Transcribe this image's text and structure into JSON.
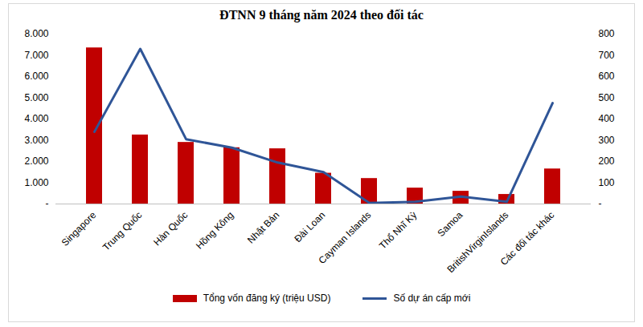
{
  "chart_data": {
    "type": "bar",
    "title": "ĐTNN 9 tháng năm 2024 theo đối tác",
    "categories": [
      "Singapore",
      "Trung Quốc",
      "Hàn Quốc",
      "Hồng Kông",
      "Nhật Bản",
      "Đài Loan",
      "Cayman Islands",
      "Thổ Nhĩ Kỳ",
      "Samoa",
      "BritishVirginIslands",
      "Các đối tác khác"
    ],
    "series": [
      {
        "name": "Tổng vốn đăng ký (triệu USD)",
        "type": "bar",
        "color": "#c00000",
        "values": [
          7350,
          3250,
          2900,
          2650,
          2600,
          1450,
          1200,
          750,
          600,
          450,
          1650
        ]
      },
      {
        "name": "Số dự án cấp mới",
        "type": "line",
        "color": "#2f5597",
        "axis": "y2",
        "values": [
          340,
          730,
          305,
          265,
          195,
          150,
          5,
          10,
          35,
          10,
          475
        ]
      }
    ],
    "ylim": [
      0,
      8000
    ],
    "yticks": [
      {
        "value": 0,
        "label": "-"
      },
      {
        "value": 1000,
        "label": "1.000"
      },
      {
        "value": 2000,
        "label": "2.000"
      },
      {
        "value": 3000,
        "label": "3.000"
      },
      {
        "value": 4000,
        "label": "4.000"
      },
      {
        "value": 5000,
        "label": "5.000"
      },
      {
        "value": 6000,
        "label": "6.000"
      },
      {
        "value": 7000,
        "label": "7.000"
      },
      {
        "value": 8000,
        "label": "8.000"
      }
    ],
    "y2lim": [
      0,
      800
    ],
    "y2ticks": [
      {
        "value": 0,
        "label": "-"
      },
      100,
      200,
      300,
      400,
      500,
      600,
      700,
      800
    ],
    "legend": "bottom"
  }
}
